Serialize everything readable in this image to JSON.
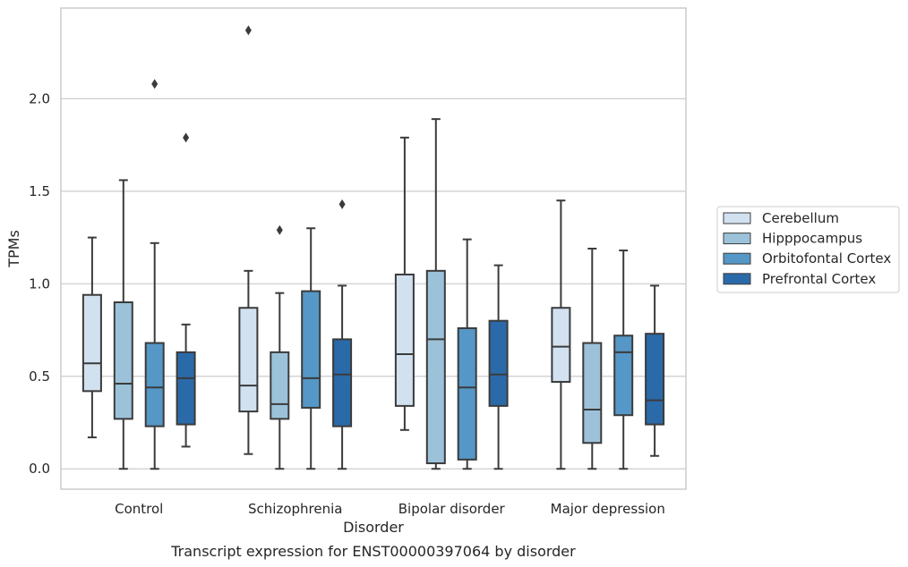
{
  "chart_data": {
    "type": "box",
    "title": "",
    "caption": "Transcript expression for ENST00000397064 by disorder",
    "xlabel": "Disorder",
    "ylabel": "TPMs",
    "ylim": [
      -0.11,
      2.49
    ],
    "yticks": [
      "0.0",
      "0.5",
      "1.0",
      "1.5",
      "2.0"
    ],
    "ytick_values": [
      0.0,
      0.5,
      1.0,
      1.5,
      2.0
    ],
    "grid": true,
    "legend_position": "right",
    "categories": [
      "Control",
      "Schizophrenia",
      "Bipolar disorder",
      "Major depression"
    ],
    "series": [
      {
        "name": "Cerebellum",
        "color": "#d1e1f0",
        "boxes": [
          {
            "whislo": 0.17,
            "q1": 0.42,
            "med": 0.57,
            "q3": 0.94,
            "whishi": 1.25,
            "fliers": []
          },
          {
            "whislo": 0.08,
            "q1": 0.31,
            "med": 0.45,
            "q3": 0.87,
            "whishi": 1.07,
            "fliers": [
              2.37
            ]
          },
          {
            "whislo": 0.21,
            "q1": 0.34,
            "med": 0.62,
            "q3": 1.05,
            "whishi": 1.79,
            "fliers": []
          },
          {
            "whislo": 0.0,
            "q1": 0.47,
            "med": 0.66,
            "q3": 0.87,
            "whishi": 1.45,
            "fliers": []
          }
        ]
      },
      {
        "name": "Hipppocampus",
        "color": "#9cc2d9",
        "boxes": [
          {
            "whislo": 0.0,
            "q1": 0.27,
            "med": 0.46,
            "q3": 0.9,
            "whishi": 1.56,
            "fliers": []
          },
          {
            "whislo": 0.0,
            "q1": 0.27,
            "med": 0.35,
            "q3": 0.63,
            "whishi": 0.95,
            "fliers": [
              1.29
            ]
          },
          {
            "whislo": 0.0,
            "q1": 0.03,
            "med": 0.7,
            "q3": 1.07,
            "whishi": 1.89,
            "fliers": []
          },
          {
            "whislo": 0.0,
            "q1": 0.14,
            "med": 0.32,
            "q3": 0.68,
            "whishi": 1.19,
            "fliers": []
          }
        ]
      },
      {
        "name": "Orbitofontal Cortex",
        "color": "#5597c6",
        "boxes": [
          {
            "whislo": 0.0,
            "q1": 0.23,
            "med": 0.44,
            "q3": 0.68,
            "whishi": 1.22,
            "fliers": [
              2.08
            ]
          },
          {
            "whislo": 0.0,
            "q1": 0.33,
            "med": 0.49,
            "q3": 0.96,
            "whishi": 1.3,
            "fliers": []
          },
          {
            "whislo": 0.0,
            "q1": 0.05,
            "med": 0.44,
            "q3": 0.76,
            "whishi": 1.24,
            "fliers": []
          },
          {
            "whislo": 0.0,
            "q1": 0.29,
            "med": 0.63,
            "q3": 0.72,
            "whishi": 1.18,
            "fliers": []
          }
        ]
      },
      {
        "name": "Prefrontal Cortex",
        "color": "#2b6aa8",
        "boxes": [
          {
            "whislo": 0.12,
            "q1": 0.24,
            "med": 0.49,
            "q3": 0.63,
            "whishi": 0.78,
            "fliers": [
              1.79
            ]
          },
          {
            "whislo": 0.0,
            "q1": 0.23,
            "med": 0.51,
            "q3": 0.7,
            "whishi": 0.99,
            "fliers": [
              1.43
            ]
          },
          {
            "whislo": 0.0,
            "q1": 0.34,
            "med": 0.51,
            "q3": 0.8,
            "whishi": 1.1,
            "fliers": []
          },
          {
            "whislo": 0.07,
            "q1": 0.24,
            "med": 0.37,
            "q3": 0.73,
            "whishi": 0.99,
            "fliers": []
          }
        ]
      }
    ]
  }
}
